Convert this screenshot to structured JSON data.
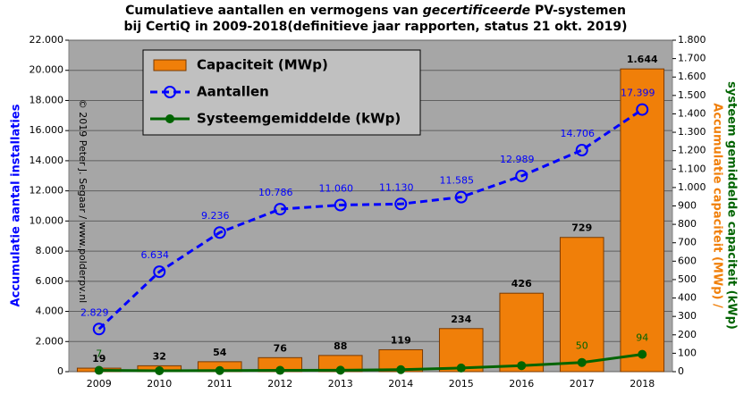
{
  "chart_data": {
    "type": "bar",
    "title": [
      "Cumulatieve aantallen en vermogens van ",
      "gecertificeerde",
      " PV-systemen"
    ],
    "subtitle": "bij CertiQ in 2009-2018(definitieve jaar rapporten, status 21 okt. 2019)",
    "ylabel": "Accumulatie  aantal installaties",
    "y2label": [
      "Accumulatie  capaciteit (MWp) /",
      "systeem gemiddelde  capaciteit (kWp)"
    ],
    "annotation": "© 2019 Peter J. Segaar / www.polderpv.nl",
    "categories": [
      "2009",
      "2010",
      "2011",
      "2012",
      "2013",
      "2014",
      "2015",
      "2016",
      "2017",
      "2018"
    ],
    "series": [
      {
        "name": "Capaciteit (MWp)",
        "type": "bar",
        "axis": "y2",
        "color": "#f07f09",
        "values": [
          19,
          32,
          54,
          76,
          88,
          119,
          234,
          426,
          729,
          1644
        ],
        "value_labels": [
          "19",
          "32",
          "54",
          "76",
          "88",
          "119",
          "234",
          "426",
          "729",
          "1.644"
        ]
      },
      {
        "name": "Aantallen",
        "type": "line",
        "axis": "y",
        "color": "#0000ff",
        "dashed": true,
        "values": [
          2829,
          6634,
          9236,
          10786,
          11060,
          11130,
          11585,
          12989,
          14706,
          17399
        ],
        "value_labels": [
          "2.829",
          "6.634",
          "9.236",
          "10.786",
          "11.060",
          "11.130",
          "11.585",
          "12.989",
          "14.706",
          "17.399"
        ]
      },
      {
        "name": "Systeemgemiddelde (kWp)",
        "type": "line",
        "axis": "y2",
        "color": "#006400",
        "dashed": false,
        "values": [
          7,
          5,
          6,
          7,
          8,
          11,
          20,
          33,
          50,
          94
        ],
        "value_labels": [
          "7",
          null,
          null,
          null,
          null,
          null,
          null,
          null,
          "50",
          "94"
        ]
      }
    ],
    "ylim": [
      0,
      22000
    ],
    "yticks": [
      0,
      {
        "value": 2000,
        "label": "2.000"
      },
      {
        "value": 4000,
        "label": "4.000"
      },
      {
        "value": 6000,
        "label": "6.000"
      },
      {
        "value": 8000,
        "label": "8.000"
      },
      {
        "value": 10000,
        "label": "10.000"
      },
      {
        "value": 12000,
        "label": "12.000"
      },
      {
        "value": 14000,
        "label": "14.000"
      },
      {
        "value": 16000,
        "label": "16.000"
      },
      {
        "value": 18000,
        "label": "18.000"
      },
      {
        "value": 20000,
        "label": "20.000"
      },
      {
        "value": 22000,
        "label": "22.000"
      }
    ],
    "y2lim": [
      0,
      1800
    ],
    "y2ticks": [
      0,
      100,
      200,
      300,
      400,
      500,
      600,
      700,
      800,
      900,
      {
        "value": 1000,
        "label": "1.000"
      },
      {
        "value": 1100,
        "label": "1.100"
      },
      {
        "value": 1200,
        "label": "1.200"
      },
      {
        "value": 1300,
        "label": "1.300"
      },
      {
        "value": 1400,
        "label": "1.400"
      },
      {
        "value": 1500,
        "label": "1.500"
      },
      {
        "value": 1600,
        "label": "1.600"
      },
      {
        "value": 1700,
        "label": "1.700"
      },
      {
        "value": 1800,
        "label": "1.800"
      }
    ],
    "grid": true,
    "legend": "upper left"
  }
}
